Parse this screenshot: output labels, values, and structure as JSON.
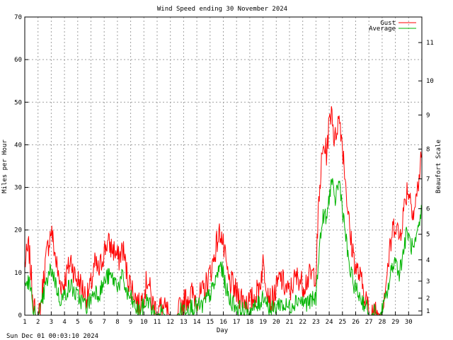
{
  "chart_data": {
    "type": "line",
    "title": "Wind Speed ending 30 November 2024",
    "xlabel": "Day",
    "ylabel": "Miles per Hour",
    "y2label": "Beaufort Scale",
    "footer": "Sun Dec 01 00:03:10 2024",
    "grid": true,
    "legend_position": "top-right",
    "xlim": [
      1,
      31
    ],
    "ylim": [
      0,
      70
    ],
    "x_ticks": [
      "1",
      "2",
      "3",
      "4",
      "5",
      "6",
      "7",
      "8",
      "9",
      "10",
      "11",
      "12",
      "13",
      "14",
      "15",
      "16",
      "17",
      "18",
      "19",
      "20",
      "21",
      "22",
      "23",
      "24",
      "25",
      "26",
      "27",
      "28",
      "29",
      "30"
    ],
    "y_ticks": [
      "0",
      "10",
      "20",
      "30",
      "40",
      "50",
      "60",
      "70"
    ],
    "beaufort_ticks": [
      {
        "label": "1",
        "mph": 1
      },
      {
        "label": "2",
        "mph": 4
      },
      {
        "label": "3",
        "mph": 8
      },
      {
        "label": "4",
        "mph": 13
      },
      {
        "label": "5",
        "mph": 19
      },
      {
        "label": "6",
        "mph": 25
      },
      {
        "label": "7",
        "mph": 32
      },
      {
        "label": "8",
        "mph": 39
      },
      {
        "label": "9",
        "mph": 47
      },
      {
        "label": "10",
        "mph": 55
      },
      {
        "label": "11",
        "mph": 64
      }
    ],
    "series": [
      {
        "name": "Gust",
        "color": "#ff0000",
        "keypoints": [
          [
            1.0,
            12
          ],
          [
            1.3,
            16
          ],
          [
            1.6,
            5
          ],
          [
            1.8,
            0
          ],
          [
            2.0,
            0
          ],
          [
            2.2,
            2
          ],
          [
            2.5,
            11
          ],
          [
            2.8,
            17
          ],
          [
            3.0,
            20
          ],
          [
            3.3,
            14
          ],
          [
            3.6,
            8
          ],
          [
            3.9,
            7
          ],
          [
            4.2,
            10
          ],
          [
            4.5,
            13
          ],
          [
            4.8,
            9
          ],
          [
            5.1,
            8
          ],
          [
            5.4,
            6
          ],
          [
            5.7,
            4
          ],
          [
            6.0,
            7
          ],
          [
            6.3,
            12
          ],
          [
            6.6,
            10
          ],
          [
            6.9,
            14
          ],
          [
            7.2,
            17
          ],
          [
            7.5,
            16
          ],
          [
            7.8,
            15
          ],
          [
            8.1,
            13
          ],
          [
            8.4,
            16
          ],
          [
            8.7,
            10
          ],
          [
            9.0,
            7
          ],
          [
            9.3,
            5
          ],
          [
            9.6,
            2
          ],
          [
            10.0,
            5
          ],
          [
            10.3,
            9
          ],
          [
            10.6,
            3
          ],
          [
            11.0,
            1
          ],
          [
            11.3,
            2
          ],
          [
            11.6,
            1
          ],
          [
            12.0,
            0
          ],
          [
            12.5,
            0
          ],
          [
            12.8,
            2
          ],
          [
            13.2,
            4
          ],
          [
            13.6,
            5
          ],
          [
            14.0,
            4
          ],
          [
            14.4,
            5
          ],
          [
            14.8,
            8
          ],
          [
            15.2,
            12
          ],
          [
            15.5,
            17
          ],
          [
            15.8,
            20
          ],
          [
            16.1,
            14
          ],
          [
            16.4,
            8
          ],
          [
            16.7,
            7
          ],
          [
            17.0,
            5
          ],
          [
            17.5,
            4
          ],
          [
            18.0,
            3
          ],
          [
            18.5,
            5
          ],
          [
            18.8,
            8
          ],
          [
            19.0,
            12
          ],
          [
            19.3,
            7
          ],
          [
            19.6,
            3
          ],
          [
            20.0,
            6
          ],
          [
            20.3,
            9
          ],
          [
            20.6,
            7
          ],
          [
            21.0,
            5
          ],
          [
            21.3,
            8
          ],
          [
            21.7,
            9
          ],
          [
            22.0,
            7
          ],
          [
            22.5,
            9
          ],
          [
            23.0,
            10
          ],
          [
            23.2,
            25
          ],
          [
            23.4,
            35
          ],
          [
            23.6,
            40
          ],
          [
            23.8,
            38
          ],
          [
            24.0,
            45
          ],
          [
            24.2,
            49
          ],
          [
            24.4,
            40
          ],
          [
            24.6,
            45
          ],
          [
            24.8,
            46
          ],
          [
            25.0,
            40
          ],
          [
            25.2,
            33
          ],
          [
            25.4,
            25
          ],
          [
            25.6,
            18
          ],
          [
            25.8,
            15
          ],
          [
            26.0,
            11
          ],
          [
            26.2,
            10
          ],
          [
            26.4,
            8
          ],
          [
            26.6,
            6
          ],
          [
            26.8,
            4
          ],
          [
            27.0,
            0
          ],
          [
            27.2,
            0
          ],
          [
            27.4,
            2
          ],
          [
            27.6,
            1
          ],
          [
            27.8,
            0
          ],
          [
            28.0,
            2
          ],
          [
            28.2,
            6
          ],
          [
            28.5,
            13
          ],
          [
            28.8,
            20
          ],
          [
            29.0,
            22
          ],
          [
            29.3,
            18
          ],
          [
            29.6,
            24
          ],
          [
            29.9,
            30
          ],
          [
            30.1,
            28
          ],
          [
            30.4,
            24
          ],
          [
            30.7,
            30
          ],
          [
            31.0,
            38
          ]
        ]
      },
      {
        "name": "Average",
        "color": "#00b400",
        "keypoints": [
          [
            1.0,
            7
          ],
          [
            1.3,
            8
          ],
          [
            1.6,
            3
          ],
          [
            1.8,
            0
          ],
          [
            2.0,
            0
          ],
          [
            2.2,
            1
          ],
          [
            2.5,
            6
          ],
          [
            2.8,
            9
          ],
          [
            3.0,
            11
          ],
          [
            3.3,
            8
          ],
          [
            3.6,
            4
          ],
          [
            3.9,
            4
          ],
          [
            4.2,
            6
          ],
          [
            4.5,
            7
          ],
          [
            4.8,
            5
          ],
          [
            5.1,
            4
          ],
          [
            5.4,
            3
          ],
          [
            5.7,
            2
          ],
          [
            6.0,
            4
          ],
          [
            6.3,
            6
          ],
          [
            6.6,
            5
          ],
          [
            6.9,
            7
          ],
          [
            7.2,
            9
          ],
          [
            7.5,
            9
          ],
          [
            7.8,
            8
          ],
          [
            8.1,
            7
          ],
          [
            8.4,
            9
          ],
          [
            8.7,
            5
          ],
          [
            9.0,
            4
          ],
          [
            9.3,
            2
          ],
          [
            9.6,
            1
          ],
          [
            10.0,
            2
          ],
          [
            10.3,
            4
          ],
          [
            10.6,
            1
          ],
          [
            11.0,
            0
          ],
          [
            11.3,
            1
          ],
          [
            11.6,
            0
          ],
          [
            12.0,
            0
          ],
          [
            12.5,
            0
          ],
          [
            12.8,
            1
          ],
          [
            13.2,
            2
          ],
          [
            13.6,
            2
          ],
          [
            14.0,
            2
          ],
          [
            14.4,
            2
          ],
          [
            14.8,
            4
          ],
          [
            15.2,
            6
          ],
          [
            15.5,
            9
          ],
          [
            15.8,
            12
          ],
          [
            16.1,
            8
          ],
          [
            16.4,
            4
          ],
          [
            16.7,
            3
          ],
          [
            17.0,
            2
          ],
          [
            17.5,
            1
          ],
          [
            18.0,
            1
          ],
          [
            18.5,
            2
          ],
          [
            18.8,
            3
          ],
          [
            19.0,
            5
          ],
          [
            19.3,
            3
          ],
          [
            19.6,
            1
          ],
          [
            20.0,
            2
          ],
          [
            20.3,
            3
          ],
          [
            20.6,
            2
          ],
          [
            21.0,
            2
          ],
          [
            21.3,
            3
          ],
          [
            21.7,
            4
          ],
          [
            22.0,
            3
          ],
          [
            22.5,
            3
          ],
          [
            23.0,
            4
          ],
          [
            23.2,
            14
          ],
          [
            23.4,
            20
          ],
          [
            23.6,
            24
          ],
          [
            23.8,
            22
          ],
          [
            24.0,
            28
          ],
          [
            24.2,
            32
          ],
          [
            24.4,
            26
          ],
          [
            24.6,
            30
          ],
          [
            24.8,
            31
          ],
          [
            25.0,
            25
          ],
          [
            25.2,
            20
          ],
          [
            25.4,
            14
          ],
          [
            25.6,
            10
          ],
          [
            25.8,
            8
          ],
          [
            26.0,
            6
          ],
          [
            26.2,
            5
          ],
          [
            26.4,
            4
          ],
          [
            26.6,
            3
          ],
          [
            26.8,
            2
          ],
          [
            27.0,
            0
          ],
          [
            27.2,
            0
          ],
          [
            27.4,
            1
          ],
          [
            27.6,
            0
          ],
          [
            27.8,
            0
          ],
          [
            28.0,
            1
          ],
          [
            28.2,
            3
          ],
          [
            28.5,
            7
          ],
          [
            28.8,
            12
          ],
          [
            29.0,
            13
          ],
          [
            29.3,
            10
          ],
          [
            29.6,
            15
          ],
          [
            29.9,
            20
          ],
          [
            30.1,
            17
          ],
          [
            30.4,
            15
          ],
          [
            30.7,
            19
          ],
          [
            31.0,
            25
          ]
        ]
      }
    ]
  }
}
